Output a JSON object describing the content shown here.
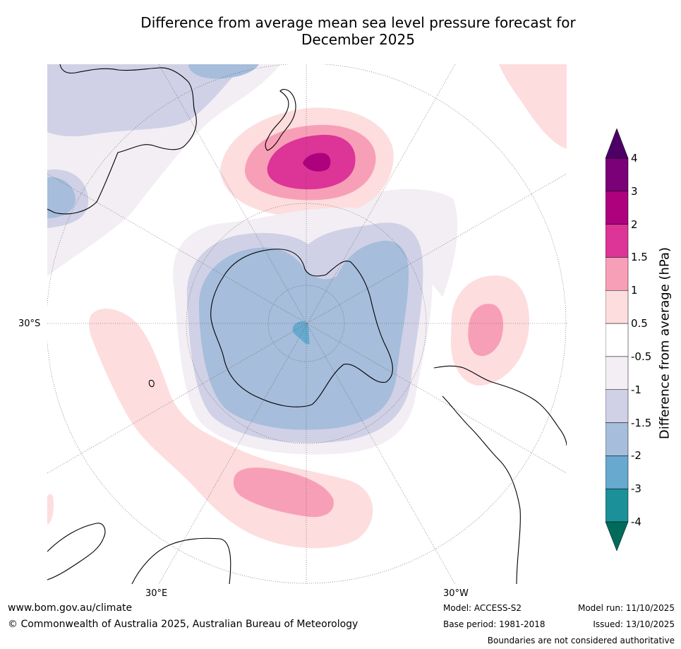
{
  "title": {
    "line1": "Difference from average mean sea level pressure forecast for",
    "line2": "December 2025"
  },
  "map": {
    "projection": "south-polar-stereographic",
    "labels": {
      "lat_30s": "30°S",
      "lon_30e": "30°E",
      "lon_30w": "30°W"
    }
  },
  "colorbar": {
    "label": "Difference from average (hPa)",
    "ticks": [
      "4",
      "3",
      "2",
      "1.5",
      "1",
      "0.5",
      "-0.5",
      "-1",
      "-1.5",
      "-2",
      "-3",
      "-4"
    ],
    "bins": [
      {
        "range": "3 to 4",
        "color": "#7a0177"
      },
      {
        "range": "2 to 3",
        "color": "#ae017e"
      },
      {
        "range": "1.5 to 2",
        "color": "#dd3497"
      },
      {
        "range": "1 to 1.5",
        "color": "#f89fb8"
      },
      {
        "range": "0.5 to 1",
        "color": "#fdddde"
      },
      {
        "range": "-0.5 to 0.5",
        "color": "#ffffff"
      },
      {
        "range": "-1 to -0.5",
        "color": "#f2eef4"
      },
      {
        "range": "-1.5 to -1",
        "color": "#d0d1e6"
      },
      {
        "range": "-2 to -1.5",
        "color": "#a6bddb"
      },
      {
        "range": "-3 to -2",
        "color": "#67a9cf"
      },
      {
        "range": "-4 to -3",
        "color": "#1c9099"
      }
    ],
    "over_color": "#4d0066",
    "under_color": "#006b5b"
  },
  "footer": {
    "website": "www.bom.gov.au/climate",
    "copyright": "© Commonwealth of Australia 2025, Australian Bureau of Meteorology",
    "model": "Model: ACCESS-S2",
    "base_period": "Base period: 1981-2018",
    "model_run": "Model run: 11/10/2025",
    "issued": "Issued: 13/10/2025",
    "disclaimer": "Boundaries are not considered authoritative"
  }
}
